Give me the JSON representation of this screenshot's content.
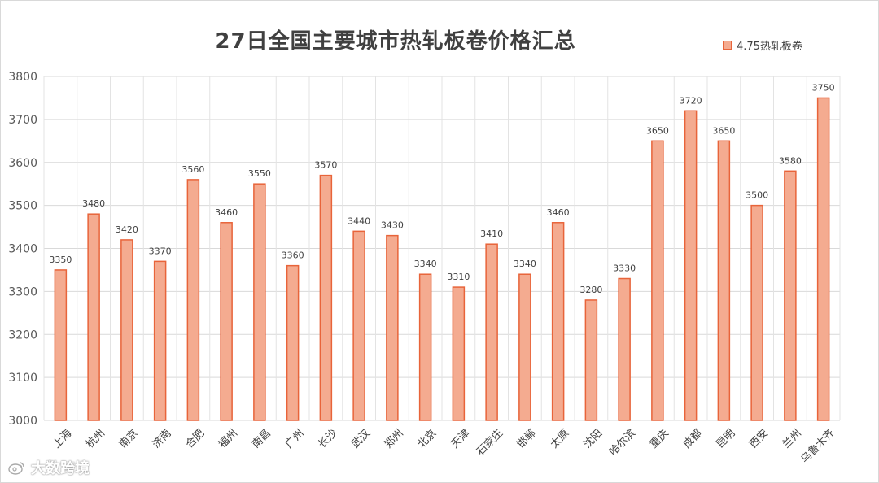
{
  "chart_data": {
    "type": "bar",
    "title": "27日全国主要城市热轧板卷价格汇总",
    "xlabel": "",
    "ylabel": "",
    "ylim": [
      3000,
      3800
    ],
    "yticks": [
      3000,
      3100,
      3200,
      3300,
      3400,
      3500,
      3600,
      3700,
      3800
    ],
    "grid": true,
    "legend_position": "top-right",
    "categories": [
      "上海",
      "杭州",
      "南京",
      "济南",
      "合肥",
      "福州",
      "南昌",
      "广州",
      "长沙",
      "武汉",
      "郑州",
      "北京",
      "天津",
      "石家庄",
      "邯郸",
      "太原",
      "沈阳",
      "哈尔滨",
      "重庆",
      "成都",
      "昆明",
      "西安",
      "兰州",
      "乌鲁木齐"
    ],
    "series": [
      {
        "name": "4.75热轧板卷",
        "color": "#f4ab90",
        "edge_color": "#e8643a",
        "values": [
          3350,
          3480,
          3420,
          3370,
          3560,
          3460,
          3550,
          3360,
          3570,
          3440,
          3430,
          3340,
          3310,
          3410,
          3340,
          3460,
          3280,
          3330,
          3650,
          3720,
          3650,
          3500,
          3580,
          3750
        ]
      }
    ]
  },
  "watermark": {
    "text": "大数跨境",
    "icon": "weibo-logo-icon"
  }
}
